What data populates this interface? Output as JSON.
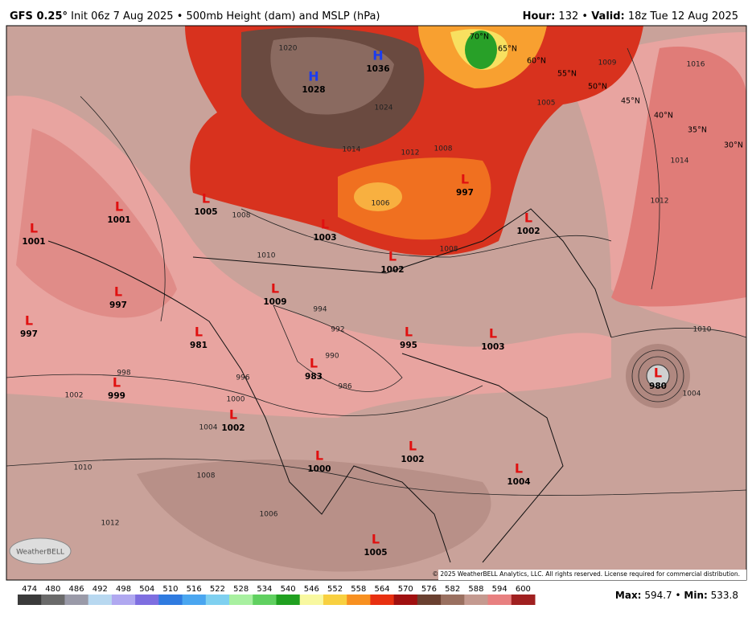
{
  "header": {
    "model": "GFS 0.25°",
    "init": "Init 06z 7 Aug 2025 • 500mb Height (dam) and MSLP (hPa)",
    "hour_label": "Hour:",
    "hour": 132,
    "sep": "•",
    "valid_label": "Valid:",
    "valid": "18z Tue 12 Aug 2025"
  },
  "pressure_centers": [
    {
      "type": "L",
      "value": 1001
    },
    {
      "type": "L",
      "value": 1001
    },
    {
      "type": "L",
      "value": 997
    },
    {
      "type": "L",
      "value": 997
    },
    {
      "type": "L",
      "value": 981
    },
    {
      "type": "L",
      "value": 999
    },
    {
      "type": "L",
      "value": 1002
    },
    {
      "type": "L",
      "value": 1009
    },
    {
      "type": "L",
      "value": 983
    },
    {
      "type": "L",
      "value": 995
    },
    {
      "type": "L",
      "value": 1003
    },
    {
      "type": "L",
      "value": 1002
    },
    {
      "type": "L",
      "value": 1003
    },
    {
      "type": "L",
      "value": 1002
    },
    {
      "type": "L",
      "value": 1005
    },
    {
      "type": "L",
      "value": 997
    },
    {
      "type": "L",
      "value": 1000
    },
    {
      "type": "L",
      "value": 1002
    },
    {
      "type": "L",
      "value": 1004
    },
    {
      "type": "L",
      "value": 1005
    },
    {
      "type": "L",
      "value": 980
    },
    {
      "type": "H",
      "value": 1036
    },
    {
      "type": "H",
      "value": 1028
    }
  ],
  "latitude_labels": [
    "70°N",
    "65°N",
    "60°N",
    "55°N",
    "50°N",
    "45°N",
    "40°N",
    "35°N",
    "30°N"
  ],
  "isobar_labels": [
    1008,
    1010,
    1014,
    1012,
    1008,
    1024,
    1020,
    1006,
    1008,
    1010,
    1012,
    1014,
    1016,
    1004,
    1010,
    1008,
    1006,
    1012,
    1000,
    996,
    994,
    992,
    990,
    986,
    1002,
    998,
    1004,
    1005,
    1009
  ],
  "colorbar": {
    "ticks": [
      474,
      480,
      486,
      492,
      498,
      504,
      510,
      516,
      522,
      528,
      534,
      540,
      546,
      552,
      558,
      564,
      570,
      576,
      582,
      588,
      594,
      600
    ],
    "colors": [
      "#3a3a3a",
      "#6a6a6a",
      "#9a9aa8",
      "#b8d8f0",
      "#b0a8f0",
      "#7e6ee0",
      "#2f7be0",
      "#4aa6f0",
      "#7fd0f0",
      "#a8f0a0",
      "#60d060",
      "#20a020",
      "#f8f8a0",
      "#f8d040",
      "#f89020",
      "#e83010",
      "#a01010",
      "#6a4030",
      "#9a7060",
      "#c49a90",
      "#e88080",
      "#a02020"
    ]
  },
  "footer": {
    "max_label": "Max:",
    "max": 594.7,
    "sep": "•",
    "min_label": "Min:",
    "min": 533.8
  },
  "copyright": "© 2025 WeatherBELL Analytics, LLC. All rights reserved. License required for commercial distribution.",
  "logo": "WeatherBELL"
}
